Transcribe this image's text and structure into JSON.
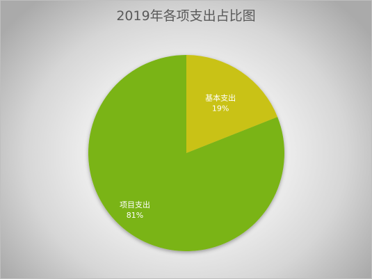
{
  "chart_data": {
    "type": "pie",
    "title": "2019年各项支出占比图",
    "slices": [
      {
        "label": "基本支出",
        "value": 19,
        "value_label": "19%",
        "color": "#c9c218"
      },
      {
        "label": "项目支出",
        "value": 81,
        "value_label": "81%",
        "color": "#7ab412"
      }
    ],
    "start": "12 o'clock",
    "direction": "clockwise",
    "legend": "none"
  }
}
